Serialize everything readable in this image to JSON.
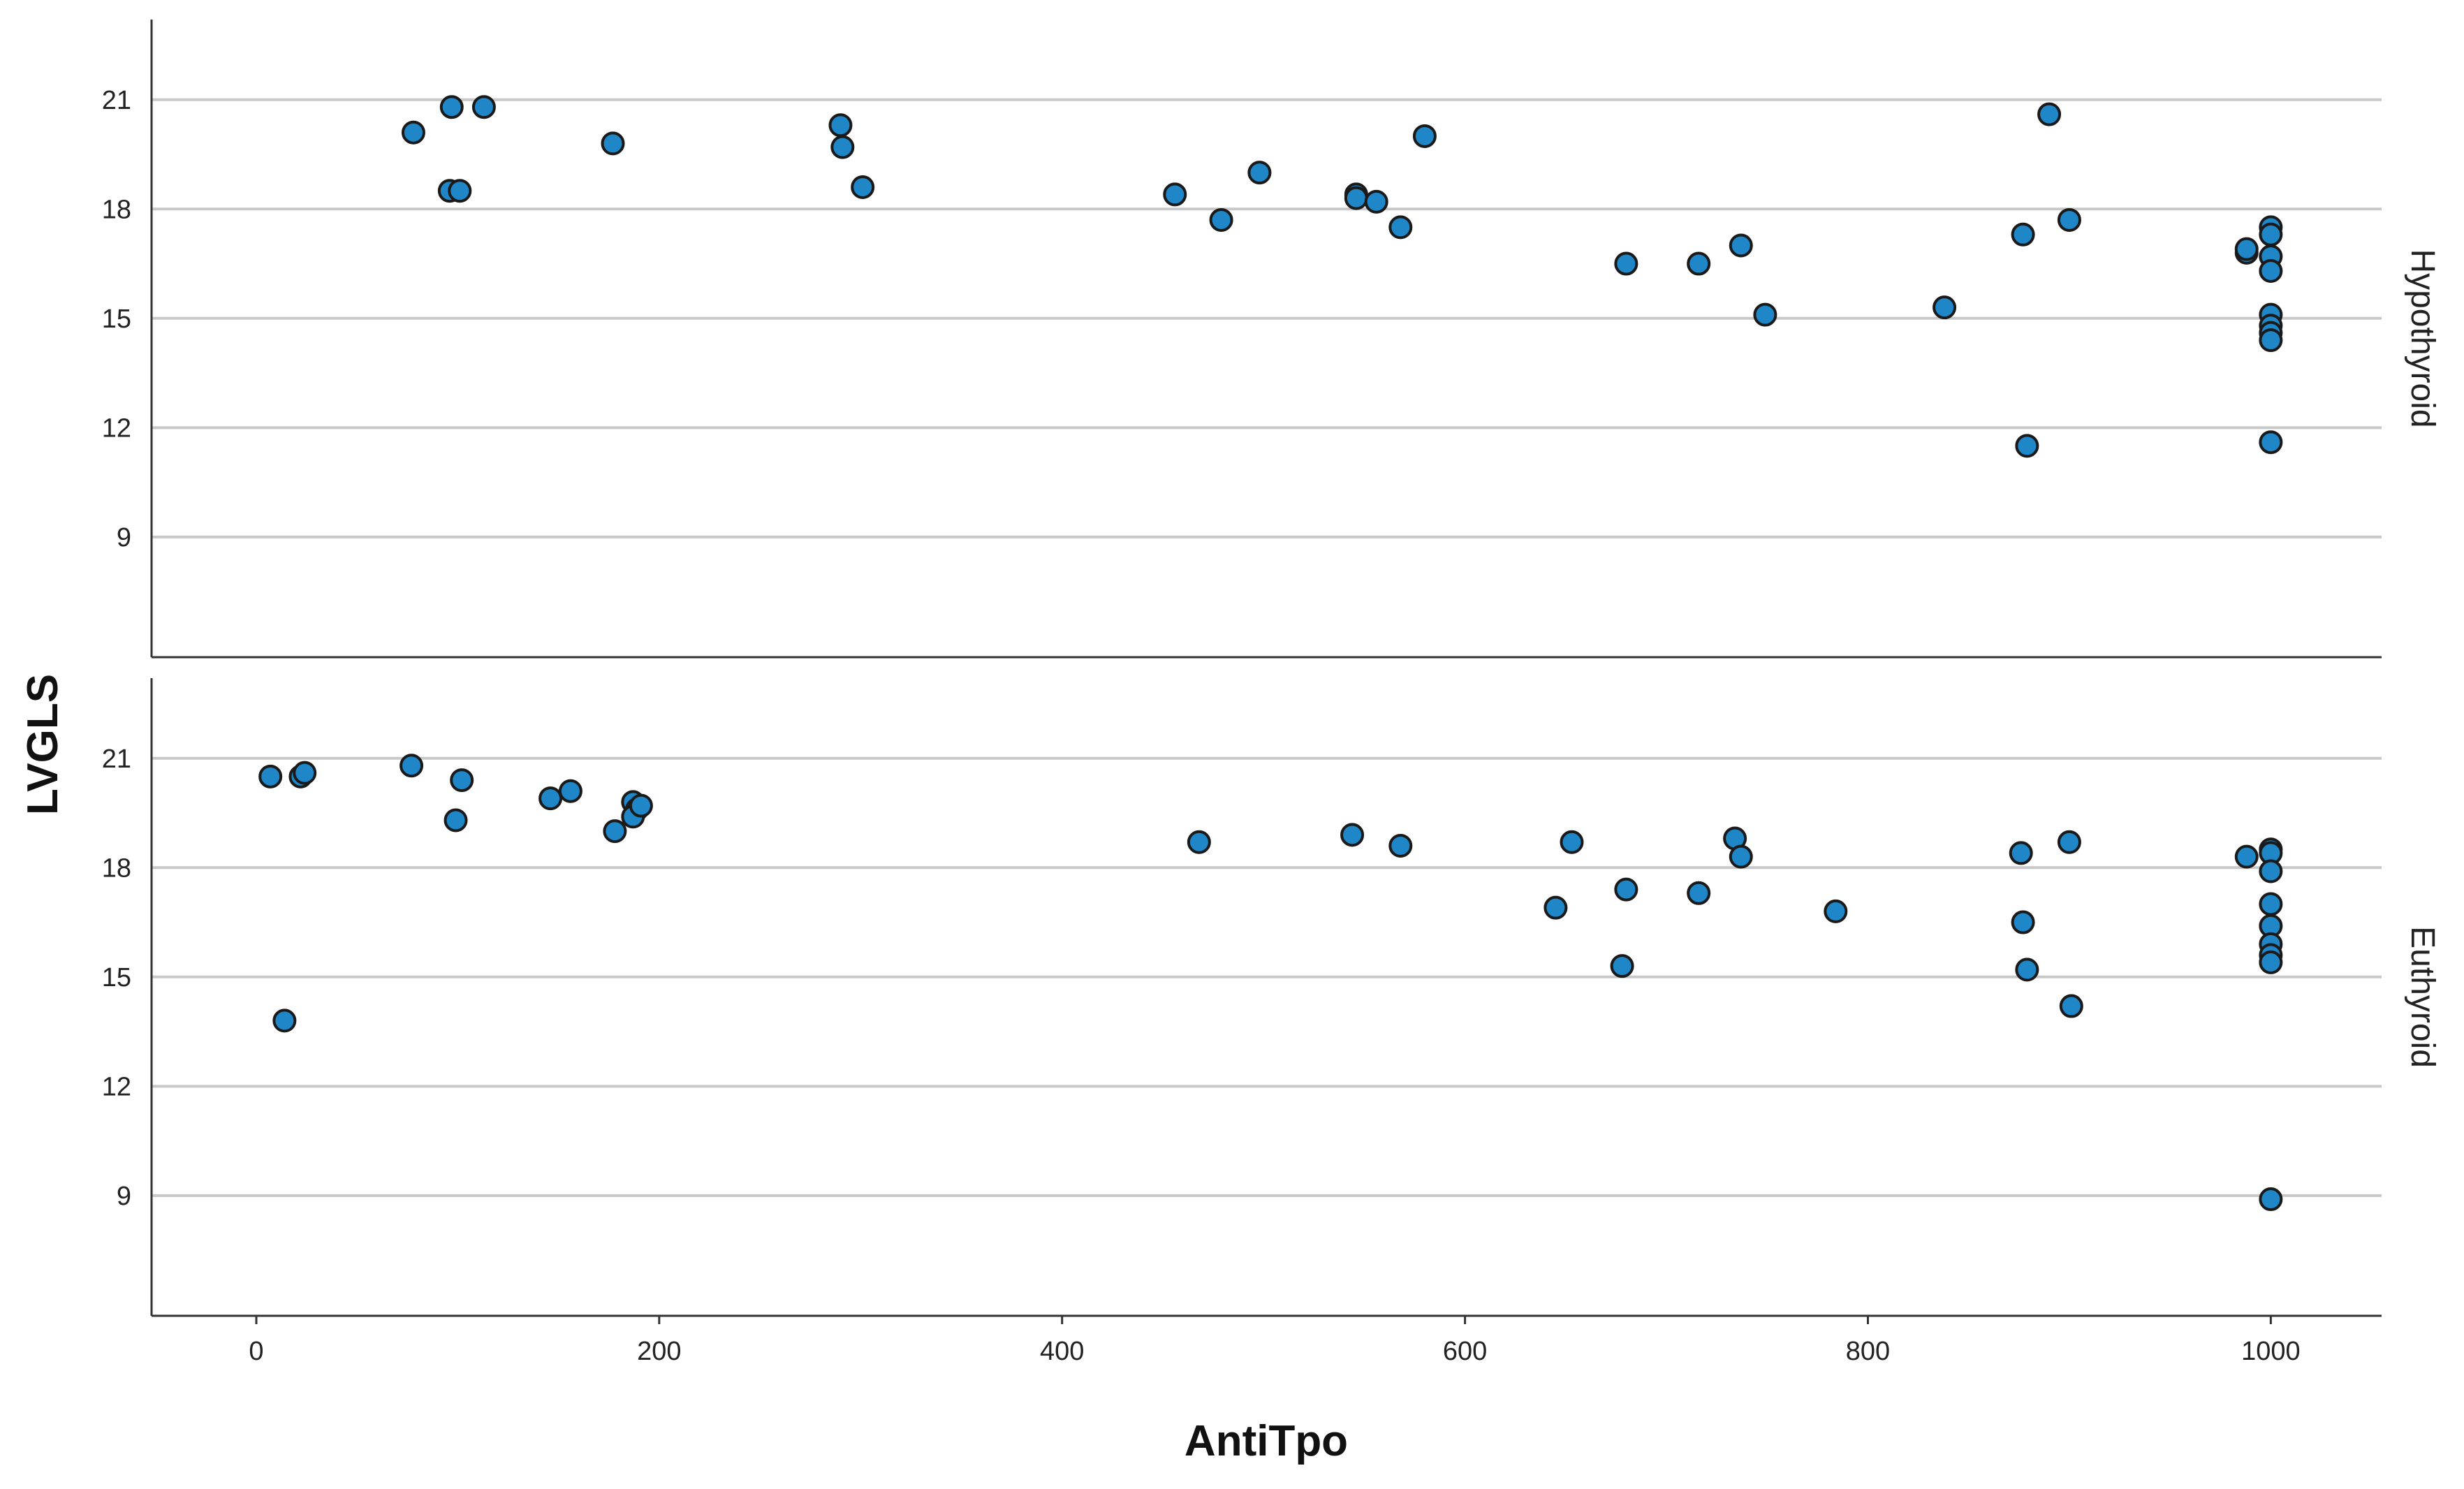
{
  "chart_data": {
    "type": "scatter",
    "title": "",
    "xlabel": "AntiTpo",
    "ylabel": "LVGLS",
    "xlim": [
      -52,
      1055
    ],
    "ylim": [
      5.7,
      23.2
    ],
    "x_ticks": [
      0,
      200,
      400,
      600,
      800,
      1000
    ],
    "x_tick_labels": [
      "0",
      "200",
      "400",
      "600",
      "800",
      "1000"
    ],
    "y_ticks": [
      9,
      12,
      15,
      18,
      21
    ],
    "y_tick_labels": [
      "9",
      "12",
      "15",
      "18",
      "21"
    ],
    "grid": "horizontal",
    "marker_color": "#1f86c8",
    "marker_edge_color": "#1a1a1a",
    "panels": [
      {
        "name": "Hypothyroid",
        "points": [
          {
            "x": 78,
            "y": 20.1
          },
          {
            "x": 97,
            "y": 20.8
          },
          {
            "x": 113,
            "y": 20.8
          },
          {
            "x": 96,
            "y": 18.5
          },
          {
            "x": 101,
            "y": 18.5
          },
          {
            "x": 177,
            "y": 19.8
          },
          {
            "x": 290,
            "y": 20.3
          },
          {
            "x": 291,
            "y": 19.7
          },
          {
            "x": 301,
            "y": 18.6
          },
          {
            "x": 456,
            "y": 18.4
          },
          {
            "x": 479,
            "y": 17.7
          },
          {
            "x": 498,
            "y": 19.0
          },
          {
            "x": 546,
            "y": 18.4
          },
          {
            "x": 546,
            "y": 18.3
          },
          {
            "x": 556,
            "y": 18.2
          },
          {
            "x": 568,
            "y": 17.5
          },
          {
            "x": 580,
            "y": 20.0
          },
          {
            "x": 680,
            "y": 16.5
          },
          {
            "x": 716,
            "y": 16.5
          },
          {
            "x": 737,
            "y": 17.0
          },
          {
            "x": 749,
            "y": 15.1
          },
          {
            "x": 838,
            "y": 15.3
          },
          {
            "x": 877,
            "y": 17.3
          },
          {
            "x": 879,
            "y": 11.5
          },
          {
            "x": 890,
            "y": 20.6
          },
          {
            "x": 900,
            "y": 17.7
          },
          {
            "x": 988,
            "y": 16.8
          },
          {
            "x": 988,
            "y": 16.9
          },
          {
            "x": 1000,
            "y": 17.5
          },
          {
            "x": 1000,
            "y": 17.3
          },
          {
            "x": 1000,
            "y": 16.7
          },
          {
            "x": 1000,
            "y": 16.3
          },
          {
            "x": 1000,
            "y": 15.1
          },
          {
            "x": 1000,
            "y": 14.8
          },
          {
            "x": 1000,
            "y": 14.6
          },
          {
            "x": 1000,
            "y": 14.4
          },
          {
            "x": 1000,
            "y": 11.6
          }
        ]
      },
      {
        "name": "Euthyroid",
        "points": [
          {
            "x": 7,
            "y": 20.5
          },
          {
            "x": 22,
            "y": 20.5
          },
          {
            "x": 24,
            "y": 20.6
          },
          {
            "x": 14,
            "y": 13.8
          },
          {
            "x": 77,
            "y": 20.8
          },
          {
            "x": 102,
            "y": 20.4
          },
          {
            "x": 99,
            "y": 19.3
          },
          {
            "x": 146,
            "y": 19.9
          },
          {
            "x": 156,
            "y": 20.1
          },
          {
            "x": 178,
            "y": 19.0
          },
          {
            "x": 187,
            "y": 19.8
          },
          {
            "x": 189,
            "y": 19.6
          },
          {
            "x": 187,
            "y": 19.4
          },
          {
            "x": 191,
            "y": 19.7
          },
          {
            "x": 468,
            "y": 18.7
          },
          {
            "x": 544,
            "y": 18.9
          },
          {
            "x": 568,
            "y": 18.6
          },
          {
            "x": 645,
            "y": 16.9
          },
          {
            "x": 653,
            "y": 18.7
          },
          {
            "x": 678,
            "y": 15.3
          },
          {
            "x": 680,
            "y": 17.4
          },
          {
            "x": 716,
            "y": 17.3
          },
          {
            "x": 734,
            "y": 18.8
          },
          {
            "x": 737,
            "y": 18.3
          },
          {
            "x": 784,
            "y": 16.8
          },
          {
            "x": 876,
            "y": 18.4
          },
          {
            "x": 877,
            "y": 16.5
          },
          {
            "x": 879,
            "y": 15.2
          },
          {
            "x": 900,
            "y": 18.7
          },
          {
            "x": 901,
            "y": 14.2
          },
          {
            "x": 988,
            "y": 18.3
          },
          {
            "x": 1000,
            "y": 18.5
          },
          {
            "x": 1000,
            "y": 18.4
          },
          {
            "x": 1000,
            "y": 17.9
          },
          {
            "x": 1000,
            "y": 17.0
          },
          {
            "x": 1000,
            "y": 16.4
          },
          {
            "x": 1000,
            "y": 15.9
          },
          {
            "x": 1000,
            "y": 15.6
          },
          {
            "x": 1000,
            "y": 15.4
          },
          {
            "x": 1000,
            "y": 8.9
          }
        ]
      }
    ]
  }
}
